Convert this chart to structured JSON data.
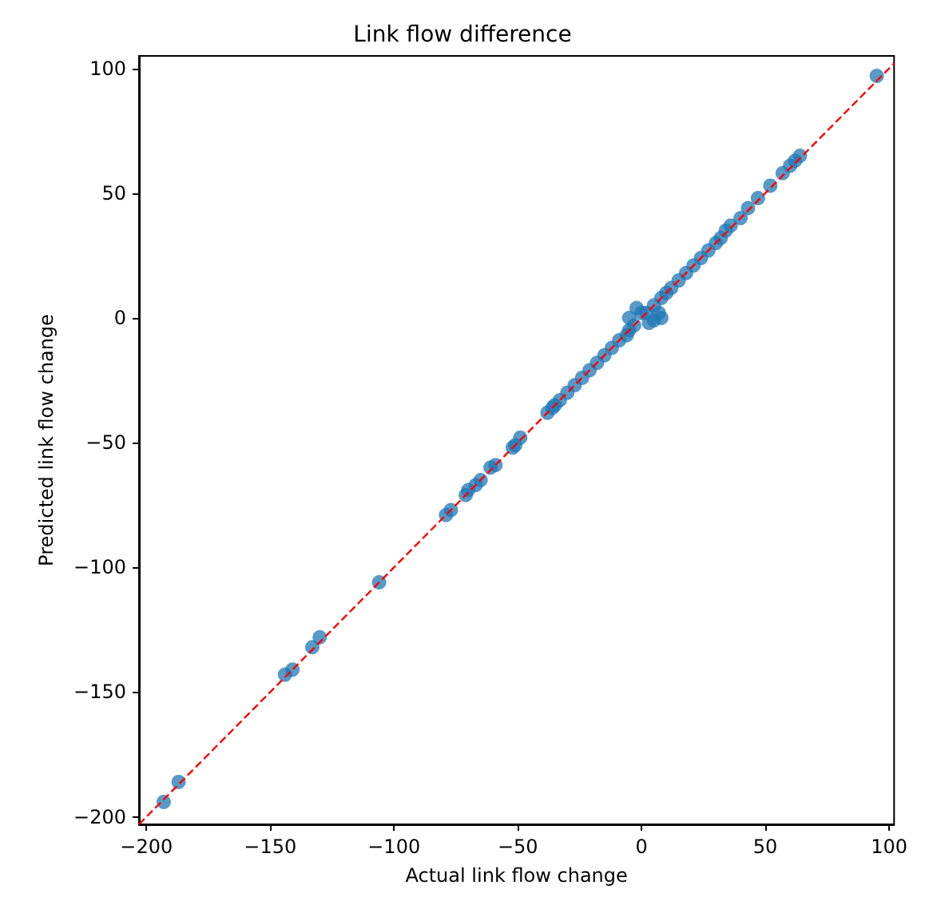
{
  "chart_data": {
    "type": "scatter",
    "title": "Link flow difference",
    "xlabel": "Actual link flow change",
    "ylabel": "Predicted link flow change",
    "xlim": [
      -203,
      102
    ],
    "ylim": [
      -203,
      105
    ],
    "xticks": [
      -200,
      -150,
      -100,
      -50,
      0,
      50,
      100
    ],
    "yticks": [
      -200,
      -150,
      -100,
      -50,
      0,
      50,
      100
    ],
    "grid": false,
    "series": [
      {
        "marker": "circle",
        "color": "#1f77b4",
        "x": [
          -193,
          -187,
          -144,
          -141,
          -133,
          -130,
          -106,
          -79,
          -77,
          -71,
          -70,
          -67,
          -65,
          -61,
          -59,
          -52,
          -51,
          -49,
          -38,
          -36,
          -35,
          -33,
          -30,
          -27,
          -24,
          -21,
          -18,
          -15,
          -12,
          -9,
          -6,
          -3,
          -5,
          -2,
          0,
          3,
          5,
          7,
          8,
          -5,
          2,
          5,
          8,
          10,
          12,
          15,
          18,
          21,
          24,
          27,
          30,
          32,
          34,
          36,
          40,
          43,
          47,
          52,
          57,
          60,
          62,
          64,
          95
        ],
        "values": [
          -194,
          -186,
          -143,
          -141,
          -132,
          -128,
          -106,
          -79,
          -77,
          -71,
          -69,
          -67,
          -65,
          -60,
          -59,
          -52,
          -51,
          -48,
          -38,
          -36,
          -35,
          -33,
          -30,
          -27,
          -24,
          -21,
          -18,
          -15,
          -12,
          -9,
          -7,
          -3,
          0,
          4,
          2,
          -2,
          -1,
          2,
          0,
          -5,
          2,
          5,
          8,
          10,
          12,
          15,
          18,
          21,
          24,
          27,
          30,
          32,
          35,
          37,
          40,
          44,
          48,
          53,
          58,
          61,
          63,
          65,
          97
        ]
      },
      {
        "type": "line",
        "marker": "none",
        "line_style": "dashed",
        "color": "#ff0000",
        "x": [
          -203,
          102
        ],
        "values": [
          -203,
          102
        ]
      }
    ]
  }
}
